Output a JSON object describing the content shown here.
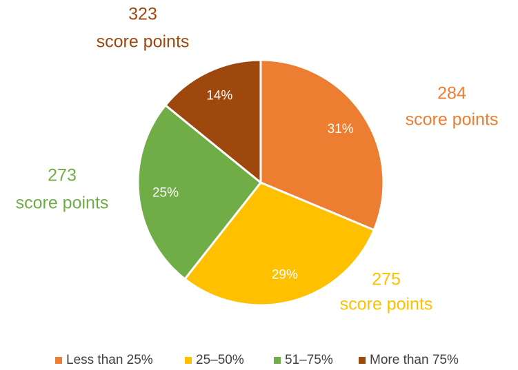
{
  "chart_data": {
    "type": "pie",
    "categories": [
      "Less than 25%",
      "25–50%",
      "51–75%",
      "More than 75%"
    ],
    "values": [
      31,
      29,
      25,
      14
    ],
    "value_labels": [
      "31%",
      "29%",
      "25%",
      "14%"
    ],
    "colors": [
      "#ED7D31",
      "#FFC000",
      "#70AD47",
      "#9E480E"
    ],
    "score_points": [
      284,
      275,
      273,
      323
    ],
    "score_unit": "score points",
    "legend": "bottom"
  }
}
